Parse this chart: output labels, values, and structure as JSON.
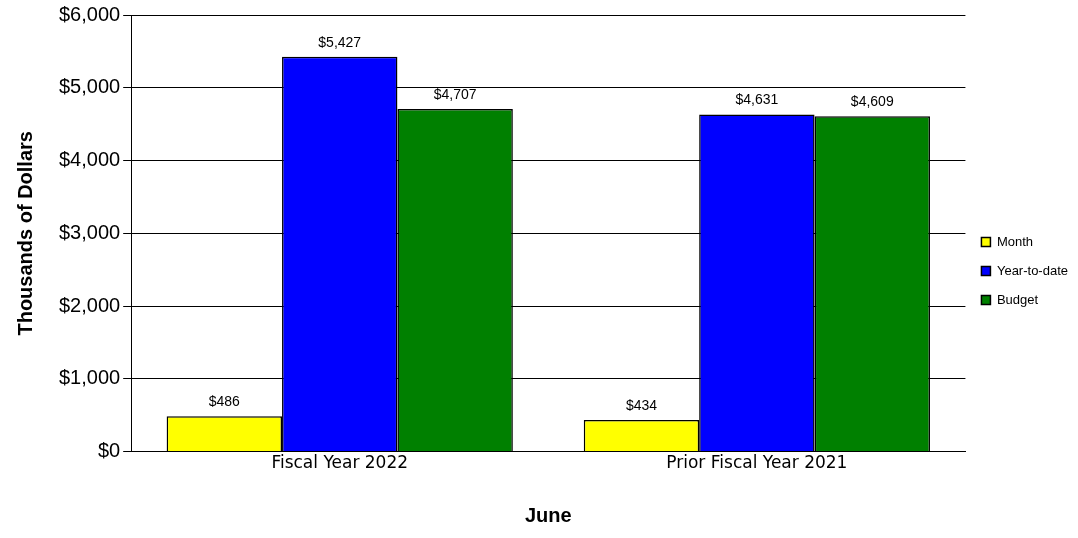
{
  "chart_data": {
    "type": "bar",
    "xlabel": "June",
    "ylabel": "Thousands of Dollars",
    "categories": [
      "Fiscal Year 2022",
      "Prior Fiscal Year 2021"
    ],
    "series": [
      {
        "name": "Month",
        "color": "#ffff00",
        "values": [
          486,
          434
        ],
        "value_labels": [
          "$486",
          "$434"
        ]
      },
      {
        "name": "Year-to-date",
        "color": "#0000ff",
        "values": [
          5427,
          4631
        ],
        "value_labels": [
          "$5,427",
          "$4,631"
        ]
      },
      {
        "name": "Budget",
        "color": "#008000",
        "values": [
          4707,
          4609
        ],
        "value_labels": [
          "$4,707",
          "$4,609"
        ]
      }
    ],
    "ylim": [
      0,
      6000
    ],
    "yticks": [
      {
        "value": 0,
        "label": "$0"
      },
      {
        "value": 1000,
        "label": "$1,000"
      },
      {
        "value": 2000,
        "label": "$2,000"
      },
      {
        "value": 3000,
        "label": "$3,000"
      },
      {
        "value": 4000,
        "label": "$4,000"
      },
      {
        "value": 5000,
        "label": "$5,000"
      },
      {
        "value": 6000,
        "label": "$6,000"
      }
    ],
    "grid": "y",
    "legend": "right"
  }
}
